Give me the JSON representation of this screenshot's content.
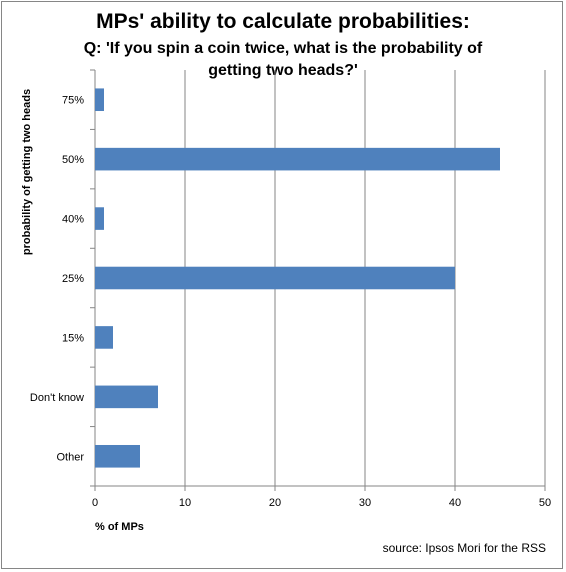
{
  "chart_data": {
    "type": "bar",
    "orientation": "horizontal",
    "title": "MPs' ability to calculate probabilities:",
    "subtitle": "Q: 'If you spin a coin twice, what is the probability of getting two heads?'",
    "xlabel": "% of MPs",
    "ylabel": "probability of getting two heads",
    "categories": [
      "75%",
      "50%",
      "40%",
      "25%",
      "15%",
      "Don't know",
      "Other"
    ],
    "values": [
      1,
      45,
      1,
      40,
      2,
      7,
      5
    ],
    "xlim": [
      0,
      50
    ],
    "xticks": [
      0,
      10,
      20,
      30,
      40,
      50
    ],
    "grid": true,
    "bar_color": "#4f81bd",
    "source": "source: Ipsos Mori for the RSS"
  }
}
